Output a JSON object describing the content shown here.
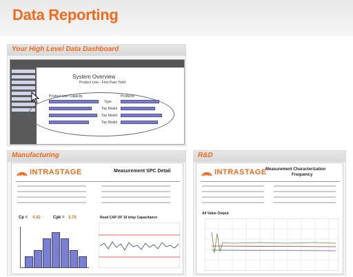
{
  "page": {
    "title": "Data Reporting"
  },
  "dashboard": {
    "heading": "Your High Level Data Dashboard",
    "system_overview": "System Overview",
    "product_line": "Product Line - First Pass Yield",
    "chart_labels": [
      "Type",
      "Top Model",
      "Top Model",
      "Top Model"
    ],
    "legend_a": "Product Line Capacity",
    "legend_b": "Products"
  },
  "manufacturing": {
    "heading": "Manufacturing",
    "logo": "INTRASTAGE",
    "report_title": "Measurement SPC Detail",
    "cp_label": "Cp =",
    "cp_value": "4.42",
    "cpk_label": "Cpk =",
    "cpk_value": "3.78",
    "chart_title": "Read CAP OF 16 inlay Capacitance",
    "hist_values": [
      2,
      3,
      5,
      6,
      5,
      3,
      2
    ]
  },
  "rnd": {
    "heading": "R&D",
    "logo": "INTRASTAGE",
    "report_title": "Measurement Characterization",
    "report_subtitle": "Frequency",
    "chart_caption": "All Value Output"
  },
  "colors": {
    "accent": "#f26a1b",
    "bar_fill": "#7a7fcf",
    "bar_border": "#3c3f8a"
  }
}
